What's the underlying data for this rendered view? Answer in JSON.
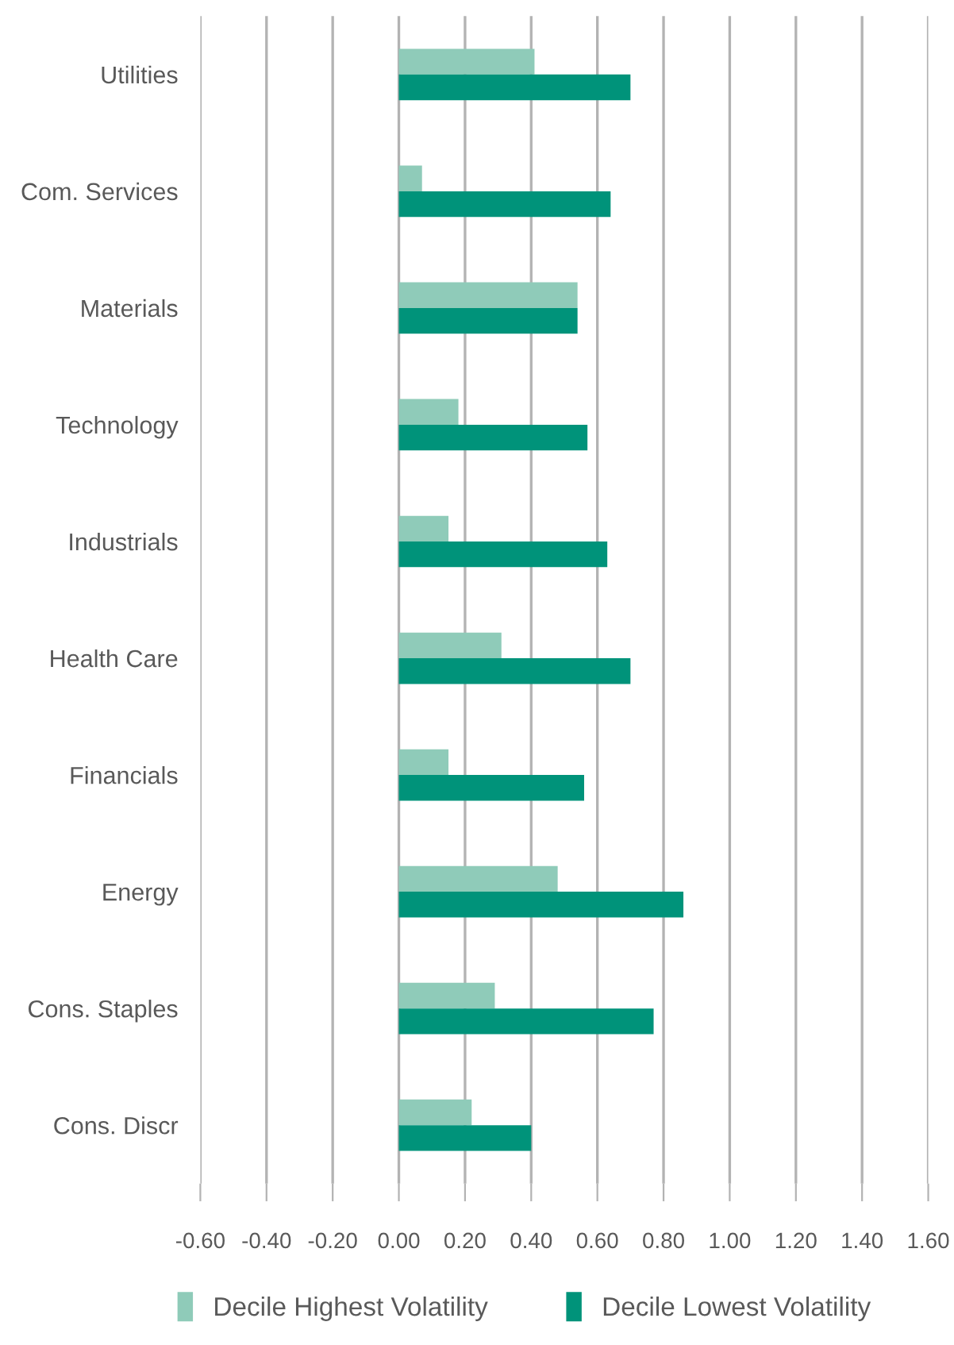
{
  "chart_data": {
    "type": "bar",
    "orientation": "horizontal",
    "categories": [
      "Utilities",
      "Com. Services",
      "Materials",
      "Technology",
      "Industrials",
      "Health Care",
      "Financials",
      "Energy",
      "Cons. Staples",
      "Cons. Discr"
    ],
    "series": [
      {
        "name": "Decile Highest Volatility",
        "color": "#8fcbb9",
        "values": [
          0.41,
          0.07,
          0.54,
          0.18,
          0.15,
          0.31,
          0.15,
          0.48,
          0.29,
          0.22
        ]
      },
      {
        "name": "Decile Lowest Volatility",
        "color": "#00937a",
        "values": [
          0.7,
          0.64,
          0.54,
          0.57,
          0.63,
          0.7,
          0.56,
          0.86,
          0.77,
          0.4
        ]
      }
    ],
    "xlim": [
      -0.6,
      1.6
    ],
    "xticks": [
      {
        "value": -0.6,
        "label": "-0.60"
      },
      {
        "value": -0.4,
        "label": "-0.40"
      },
      {
        "value": -0.2,
        "label": "-0.20"
      },
      {
        "value": 0,
        "label": "0.00"
      },
      {
        "value": 0.2,
        "label": "0.20"
      },
      {
        "value": 0.4,
        "label": "0.40"
      },
      {
        "value": 0.6,
        "label": "0.60"
      },
      {
        "value": 0.8,
        "label": "0.80"
      },
      {
        "value": 1.0,
        "label": "1.00"
      },
      {
        "value": 1.2,
        "label": "1.20"
      },
      {
        "value": 1.4,
        "label": "1.40"
      },
      {
        "value": 1.6,
        "label": "1.60"
      }
    ],
    "grid": "x",
    "legend": "bottom"
  }
}
